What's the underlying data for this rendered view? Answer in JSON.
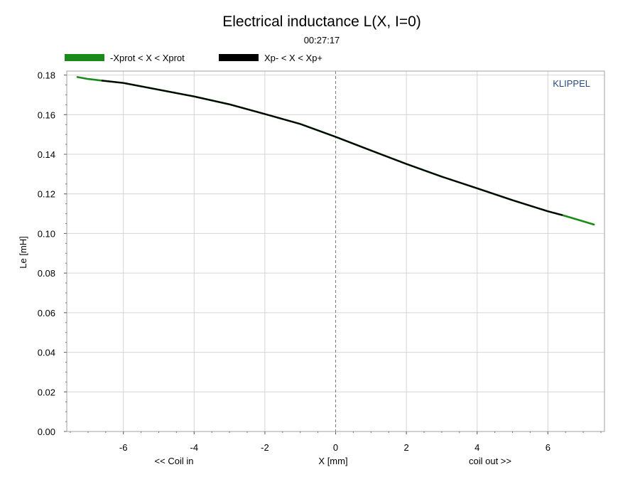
{
  "chart_data": {
    "type": "line",
    "title": "Electrical inductance L(X, I=0)",
    "subtitle": "00:27:17",
    "watermark": "KLIPPEL",
    "xlabel": "X [mm]",
    "xlabel_left": "<< Coil in",
    "xlabel_right": "coil out >>",
    "ylabel": "Le [mH]",
    "xlim": [
      -7.6,
      7.6
    ],
    "ylim": [
      0,
      0.182
    ],
    "x_ticks": [
      -6,
      -4,
      -2,
      0,
      2,
      4,
      6
    ],
    "x_tick_labels": [
      "-6",
      "-4",
      "-2",
      "0",
      "2",
      "4",
      "6"
    ],
    "y_ticks": [
      0,
      0.02,
      0.04,
      0.06,
      0.08,
      0.1,
      0.12,
      0.14,
      0.16,
      0.18
    ],
    "y_tick_labels": [
      "0.00",
      "0.02",
      "0.04",
      "0.06",
      "0.08",
      "0.10",
      "0.12",
      "0.14",
      "0.16",
      "0.18"
    ],
    "grid": true,
    "zero_line": "dashed vertical at x = 0",
    "legend_position": "top-left, above plot",
    "colors": {
      "frame": "#a0a0a0",
      "grid": "#d4d4d4",
      "zero_line": "#7a7a7a"
    },
    "series": [
      {
        "name": "-Xprot < X < Xprot",
        "color": "#1a8a1a",
        "x": [
          -7.3,
          -7.0,
          -6.6,
          -6.0,
          -5.0,
          -4.0,
          -3.0,
          -2.0,
          -1.0,
          0.0,
          1.0,
          2.0,
          3.0,
          4.0,
          5.0,
          6.0,
          6.4,
          6.8,
          7.3
        ],
        "values": [
          0.179,
          0.178,
          0.1772,
          0.176,
          0.1726,
          0.1692,
          0.1652,
          0.1603,
          0.1553,
          0.1488,
          0.1419,
          0.1351,
          0.1287,
          0.1228,
          0.1168,
          0.1112,
          0.1093,
          0.1072,
          0.1045
        ]
      },
      {
        "name": "Xp- < X < Xp+",
        "color": "#000000",
        "x": [
          -6.6,
          -6.0,
          -5.0,
          -4.0,
          -3.0,
          -2.0,
          -1.0,
          0.0,
          1.0,
          2.0,
          3.0,
          4.0,
          5.0,
          6.0,
          6.4
        ],
        "values": [
          0.1772,
          0.176,
          0.1726,
          0.1692,
          0.1652,
          0.1603,
          0.1553,
          0.1488,
          0.1419,
          0.1351,
          0.1287,
          0.1228,
          0.1168,
          0.1112,
          0.1093
        ]
      }
    ]
  }
}
